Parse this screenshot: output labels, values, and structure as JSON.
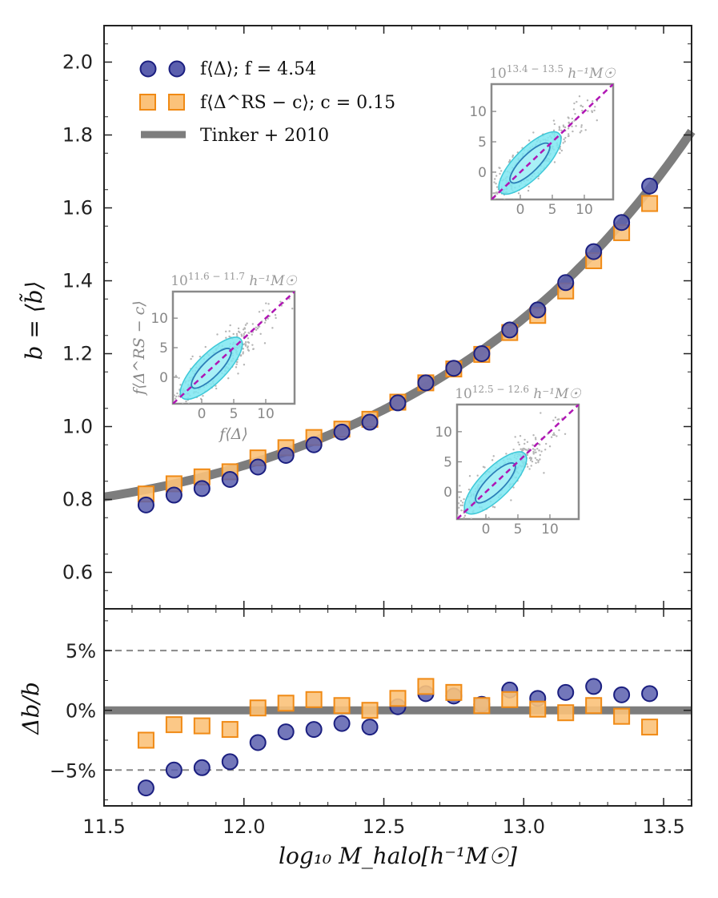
{
  "chart_data": [
    {
      "type": "scatter",
      "panel": "main",
      "xlim": [
        11.5,
        13.6
      ],
      "ylim": [
        0.5,
        2.1
      ],
      "xticks": [
        11.5,
        12.0,
        12.5,
        13.0,
        13.5
      ],
      "yticks": [
        0.6,
        0.8,
        1.0,
        1.2,
        1.4,
        1.6,
        1.8,
        2.0
      ],
      "xtick_labels": [
        "",
        "",
        "",
        "",
        ""
      ],
      "ytick_labels": [
        "0.6",
        "0.8",
        "1.0",
        "1.2",
        "1.4",
        "1.6",
        "1.8",
        "2.0"
      ],
      "ylabel": "b = ⟨b̃⟩",
      "legend": {
        "placement": "top-left",
        "entries": [
          {
            "label": "f⟨Δ⟩;   f = 4.54",
            "marker": "circle",
            "color": "#4a4fa8"
          },
          {
            "label": "f⟨Δ^RS − c⟩;   c = 0.15",
            "marker": "square",
            "color": "#f7a33c"
          },
          {
            "label": "Tinker + 2010",
            "marker": "line",
            "color": "#808080"
          }
        ]
      },
      "x": [
        11.65,
        11.75,
        11.85,
        11.95,
        12.05,
        12.15,
        12.25,
        12.35,
        12.45,
        12.55,
        12.65,
        12.75,
        12.85,
        12.95,
        13.05,
        13.15,
        13.25,
        13.35,
        13.45
      ],
      "series": [
        {
          "name": "f⟨Δ⟩",
          "marker": "circle",
          "values": [
            0.785,
            0.812,
            0.83,
            0.855,
            0.889,
            0.921,
            0.95,
            0.985,
            1.012,
            1.065,
            1.12,
            1.16,
            1.2,
            1.265,
            1.32,
            1.395,
            1.48,
            1.56,
            1.66
          ]
        },
        {
          "name": "f⟨Δ^RS − c⟩",
          "marker": "square",
          "values": [
            0.815,
            0.843,
            0.862,
            0.876,
            0.914,
            0.942,
            0.97,
            0.993,
            1.02,
            1.067,
            1.12,
            1.158,
            1.198,
            1.258,
            1.305,
            1.372,
            1.455,
            1.532,
            1.612
          ]
        },
        {
          "name": "Tinker + 2010",
          "marker": "line",
          "curve": {
            "x0": 11.5,
            "b0": 0.807,
            "x1": 13.6,
            "b1": 1.81
          }
        }
      ],
      "colors": {
        "circle_fill": "#5b5fae",
        "circle_edge": "#1b1f80",
        "square_fill": "#fbc27a",
        "square_edge": "#f08a15",
        "tinker": "#7d7d7d"
      }
    },
    {
      "type": "scatter",
      "panel": "residual",
      "xlim": [
        11.5,
        13.6
      ],
      "ylim": [
        -8.0,
        8.5
      ],
      "xticks": [
        11.5,
        12.0,
        12.5,
        13.0,
        13.5
      ],
      "xtick_labels": [
        "11.5",
        "12.0",
        "12.5",
        "13.0",
        "13.5"
      ],
      "yticks": [
        -5,
        0,
        5
      ],
      "ytick_labels": [
        "−5%",
        "0%",
        "5%"
      ],
      "ylabel": "Δb/b",
      "xlabel": "log₁₀ M_halo[h⁻¹M☉]",
      "reference_lines": [
        -5,
        0,
        5
      ],
      "x": [
        11.65,
        11.75,
        11.85,
        11.95,
        12.05,
        12.15,
        12.25,
        12.35,
        12.45,
        12.55,
        12.65,
        12.75,
        12.85,
        12.95,
        13.05,
        13.15,
        13.25,
        13.35,
        13.45
      ],
      "series": [
        {
          "name": "f⟨Δ⟩",
          "marker": "circle",
          "values": [
            -6.5,
            -5.0,
            -4.8,
            -4.3,
            -2.7,
            -1.8,
            -1.6,
            -1.1,
            -1.4,
            0.3,
            1.4,
            1.2,
            0.5,
            1.7,
            1.0,
            1.5,
            2.0,
            1.3,
            1.4
          ]
        },
        {
          "name": "f⟨Δ^RS − c⟩",
          "marker": "square",
          "values": [
            -2.5,
            -1.2,
            -1.3,
            -1.6,
            0.2,
            0.6,
            0.9,
            0.4,
            0.0,
            1.0,
            2.0,
            1.5,
            0.4,
            0.9,
            0.1,
            -0.2,
            0.4,
            -0.5,
            -1.4
          ]
        }
      ]
    }
  ],
  "insets": [
    {
      "title": "10^(11.6 − 11.7) h⁻¹M☉",
      "title_main": "10",
      "title_sup": "11.6 − 11.7",
      "title_rest": "h⁻¹M☉",
      "xlabel": "f⟨Δ⟩",
      "ylabel": "f⟨Δ^RS − c⟩",
      "ticks": [
        "0",
        "5",
        "10"
      ]
    },
    {
      "title": "10^(13.4 − 13.5) h⁻¹M☉",
      "title_main": "10",
      "title_sup": "13.4 − 13.5",
      "title_rest": "h⁻¹M☉",
      "ticks": [
        "0",
        "5",
        "10"
      ]
    },
    {
      "title": "10^(12.5 − 12.6) h⁻¹M☉",
      "title_main": "10",
      "title_sup": "12.5 − 12.6",
      "title_rest": "h⁻¹M☉",
      "ticks": [
        "0",
        "5",
        "10"
      ]
    }
  ]
}
